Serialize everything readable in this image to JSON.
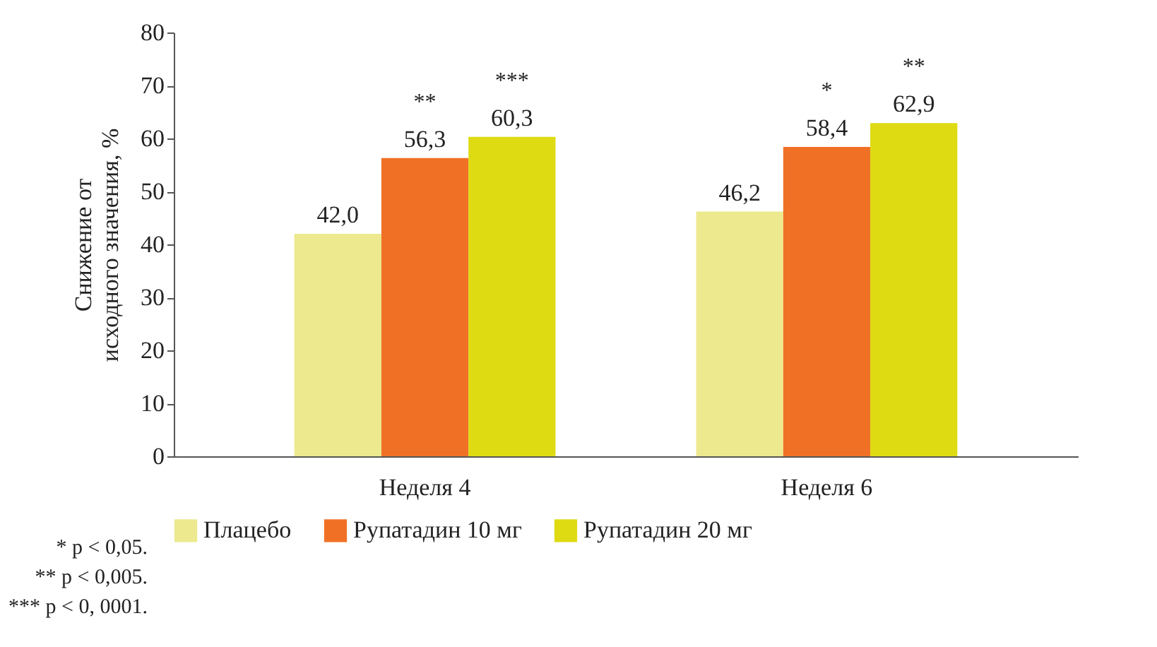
{
  "chart_data": {
    "type": "bar",
    "ylabel": "Снижение от исходного значения, %",
    "categories": [
      "Неделя 4",
      "Неделя 6"
    ],
    "series": [
      {
        "name": "Плацебо",
        "color": "#ede98f",
        "values": [
          42.0,
          46.2
        ],
        "value_labels": [
          "42,0",
          "46,2"
        ]
      },
      {
        "name": "Рупатадин 10 мг",
        "color": "#f07125",
        "values": [
          56.3,
          58.4
        ],
        "value_labels": [
          "56,3",
          "58,4"
        ]
      },
      {
        "name": "Рупатадин 20 мг",
        "color": "#dedb13",
        "values": [
          60.3,
          62.9
        ],
        "value_labels": [
          "60,3",
          "62,9"
        ]
      }
    ],
    "ylim": [
      0,
      80
    ],
    "yticks": [
      0,
      10,
      20,
      30,
      40,
      50,
      60,
      70,
      80
    ],
    "grid": false,
    "legend": "bottom",
    "annotations": [
      "**",
      "***",
      "*",
      "**",
      "* p < 0,05.",
      "** p < 0,005.",
      "*** p < 0, 0001."
    ]
  }
}
